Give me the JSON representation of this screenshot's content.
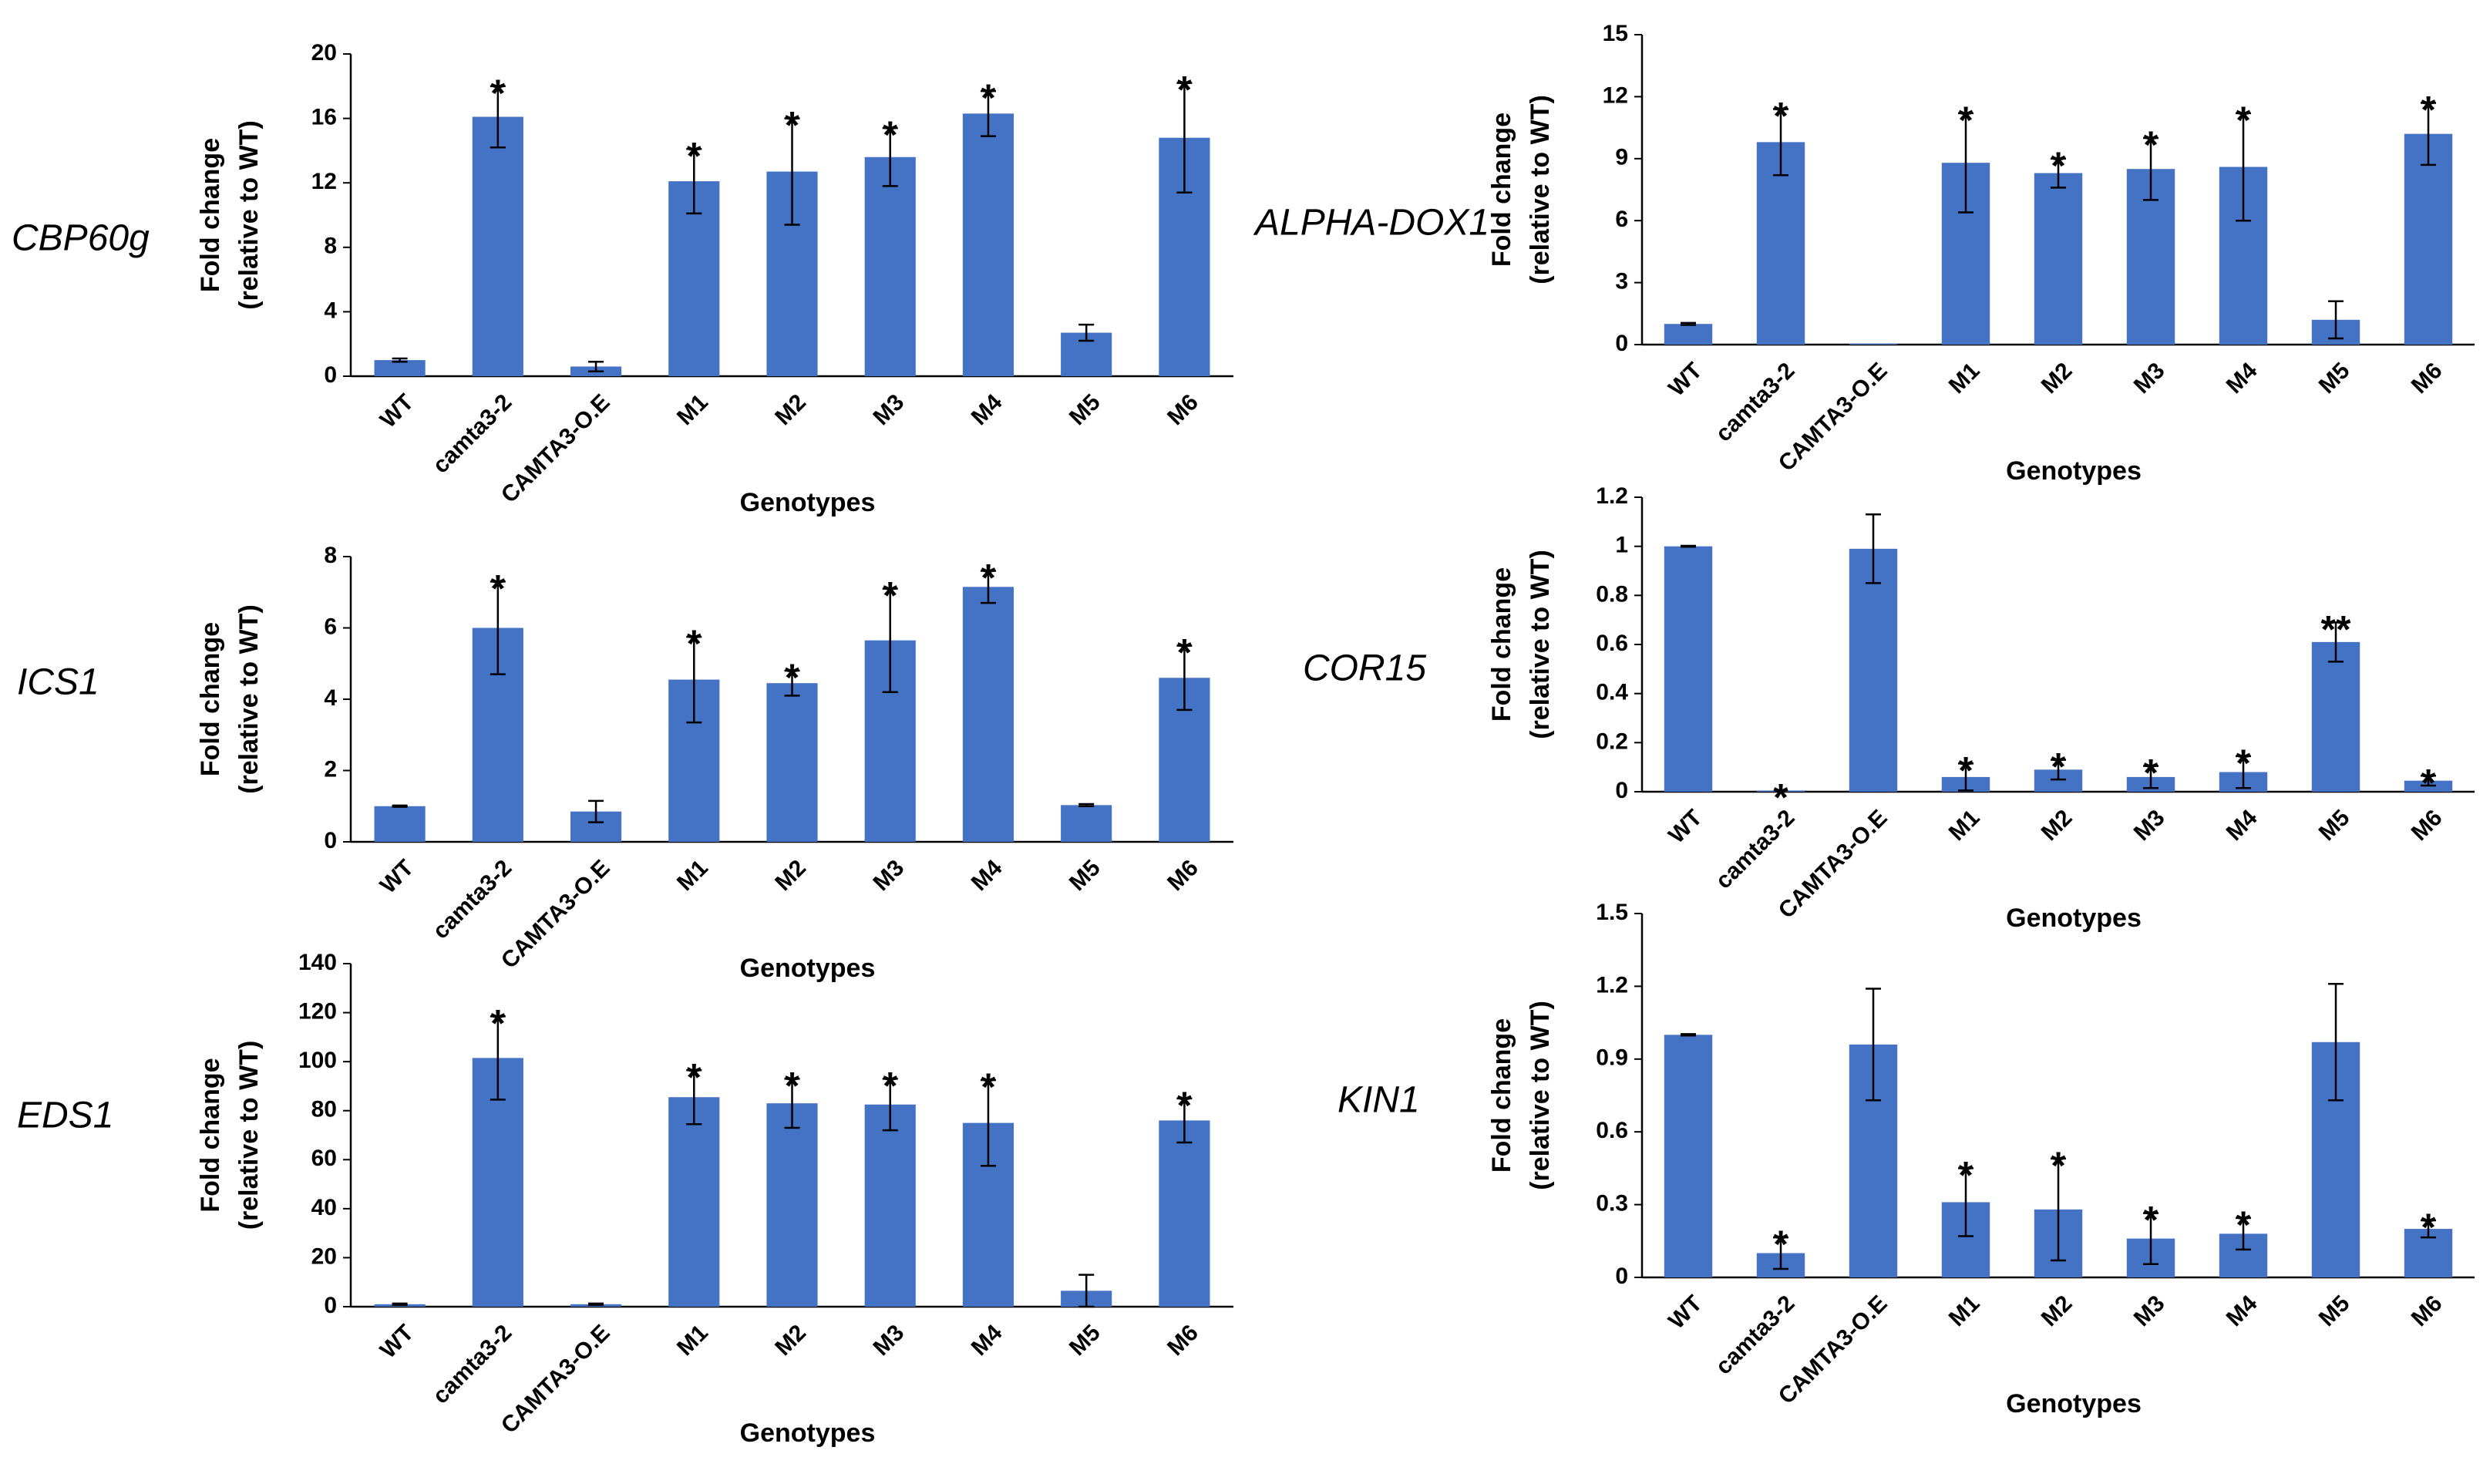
{
  "colors": {
    "bar": "#4472c4",
    "axis": "#000000",
    "error": "#000000"
  },
  "chart_data": [
    {
      "type": "bar",
      "gene": "CBP60g",
      "ylabel_line1": "Fold change",
      "ylabel_line2": "(relative to WT)",
      "xlabel": "Genotypes",
      "categories": [
        "WT",
        "camta3-2",
        "CAMTA3-O.E",
        "M1",
        "M2",
        "M3",
        "M4",
        "M5",
        "M6"
      ],
      "values": [
        1.0,
        16.1,
        0.6,
        12.1,
        12.7,
        13.6,
        16.3,
        2.7,
        14.8
      ],
      "errors": [
        0.1,
        1.9,
        0.3,
        2.0,
        3.3,
        1.8,
        1.4,
        0.5,
        3.4
      ],
      "significance": [
        "",
        "*",
        "",
        "*",
        "*",
        "*",
        "*",
        "",
        "*"
      ],
      "yticks": [
        "0",
        "4",
        "8",
        "12",
        "16",
        "20"
      ],
      "ylim": [
        0,
        20
      ]
    },
    {
      "type": "bar",
      "gene": "ALPHA-DOX1",
      "ylabel_line1": "Fold change",
      "ylabel_line2": "(relative to WT)",
      "xlabel": "Genotypes",
      "categories": [
        "WT",
        "camta3-2",
        "CAMTA3-O.E",
        "M1",
        "M2",
        "M3",
        "M4",
        "M5",
        "M6"
      ],
      "values": [
        1.0,
        9.8,
        0.05,
        8.8,
        8.3,
        8.5,
        8.6,
        1.2,
        10.2
      ],
      "errors": [
        0.05,
        1.6,
        0.0,
        2.4,
        0.7,
        1.5,
        2.6,
        0.9,
        1.5
      ],
      "significance": [
        "",
        "*",
        "",
        "*",
        "*",
        "*",
        "*",
        "",
        "*"
      ],
      "yticks": [
        "0",
        "3",
        "6",
        "9",
        "12",
        "15"
      ],
      "ylim": [
        0,
        15
      ]
    },
    {
      "type": "bar",
      "gene": "ICS1",
      "ylabel_line1": "Fold change",
      "ylabel_line2": "(relative to WT)",
      "xlabel": "Genotypes",
      "categories": [
        "WT",
        "camta3-2",
        "CAMTA3-O.E",
        "M1",
        "M2",
        "M3",
        "M4",
        "M5",
        "M6"
      ],
      "values": [
        1.0,
        6.0,
        0.85,
        4.55,
        4.45,
        5.65,
        7.15,
        1.03,
        4.6
      ],
      "errors": [
        0.02,
        1.3,
        0.3,
        1.2,
        0.35,
        1.45,
        0.45,
        0.03,
        0.9
      ],
      "significance": [
        "",
        "*",
        "",
        "*",
        "*",
        "*",
        "*",
        "",
        "*"
      ],
      "yticks": [
        "0",
        "2",
        "4",
        "6",
        "8"
      ],
      "ylim": [
        0,
        8
      ]
    },
    {
      "type": "bar",
      "gene": "COR15",
      "ylabel_line1": "Fold change",
      "ylabel_line2": "(relative to WT)",
      "xlabel": "Genotypes",
      "categories": [
        "WT",
        "camta3-2",
        "CAMTA3-O.E",
        "M1",
        "M2",
        "M3",
        "M4",
        "M5",
        "M6"
      ],
      "values": [
        1.0,
        0.005,
        0.99,
        0.06,
        0.09,
        0.06,
        0.08,
        0.61,
        0.045
      ],
      "errors": [
        0.002,
        0.0,
        0.14,
        0.055,
        0.04,
        0.045,
        0.065,
        0.08,
        0.02
      ],
      "significance": [
        "",
        "*",
        "",
        "*",
        "*",
        "*",
        "*",
        "**",
        "*"
      ],
      "yticks": [
        "0",
        "0.2",
        "0.4",
        "0.6",
        "0.8",
        "1",
        "1.2"
      ],
      "ylim": [
        0,
        1.2
      ]
    },
    {
      "type": "bar",
      "gene": "EDS1",
      "ylabel_line1": "Fold change",
      "ylabel_line2": "(relative to WT)",
      "xlabel": "Genotypes",
      "categories": [
        "WT",
        "camta3-2",
        "CAMTA3-O.E",
        "M1",
        "M2",
        "M3",
        "M4",
        "M5",
        "M6"
      ],
      "values": [
        1.0,
        101.5,
        1.0,
        85.5,
        83.0,
        82.5,
        75.0,
        6.5,
        76.0
      ],
      "errors": [
        0.3,
        17.0,
        0.3,
        11.0,
        10.0,
        10.5,
        17.5,
        6.5,
        9.0
      ],
      "significance": [
        "",
        "*",
        "",
        "*",
        "*",
        "*",
        "*",
        "",
        "*"
      ],
      "yticks": [
        "0",
        "20",
        "40",
        "60",
        "80",
        "100",
        "120",
        "140"
      ],
      "ylim": [
        0,
        140
      ]
    },
    {
      "type": "bar",
      "gene": "KIN1",
      "ylabel_line1": "Fold change",
      "ylabel_line2": "(relative to WT)",
      "xlabel": "Genotypes",
      "categories": [
        "WT",
        "camta3-2",
        "CAMTA3-O.E",
        "M1",
        "M2",
        "M3",
        "M4",
        "M5",
        "M6"
      ],
      "values": [
        1.0,
        0.1,
        0.96,
        0.31,
        0.28,
        0.16,
        0.18,
        0.97,
        0.2
      ],
      "errors": [
        0.003,
        0.065,
        0.23,
        0.14,
        0.21,
        0.105,
        0.065,
        0.24,
        0.035
      ],
      "significance": [
        "",
        "*",
        "",
        "*",
        "*",
        "*",
        "*",
        "",
        "*"
      ],
      "yticks": [
        "0",
        "0.3",
        "0.6",
        "0.9",
        "1.2",
        "1.5"
      ],
      "ylim": [
        0,
        1.5
      ]
    }
  ]
}
